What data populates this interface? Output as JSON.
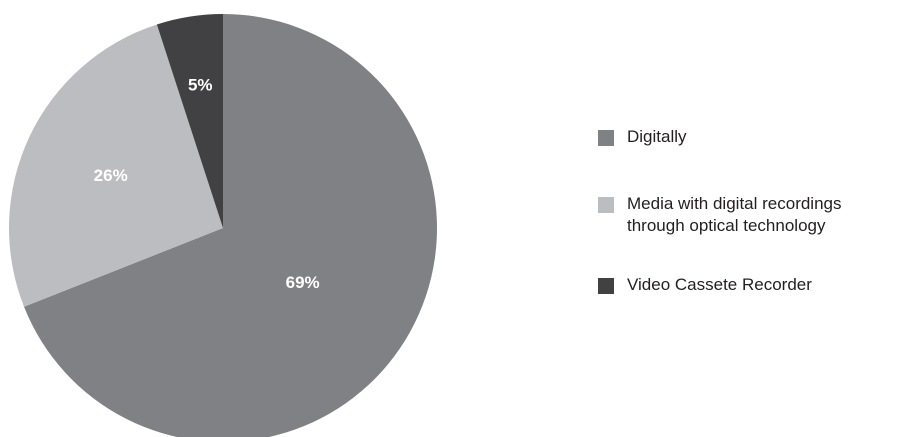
{
  "chart_data": {
    "type": "pie",
    "title": "",
    "slices": [
      {
        "label": "Digitally",
        "value": 69,
        "display": "69%",
        "color": "#808184"
      },
      {
        "label": "Media with digital recordings\nthrough optical technology",
        "value": 26,
        "display": "26%",
        "color": "#bcbdc0"
      },
      {
        "label": "Video Cassete Recorder",
        "value": 5,
        "display": "5%",
        "color": "#414042"
      }
    ],
    "start_angle": "12 o'clock",
    "direction": "clockwise",
    "legend_position": "right"
  }
}
